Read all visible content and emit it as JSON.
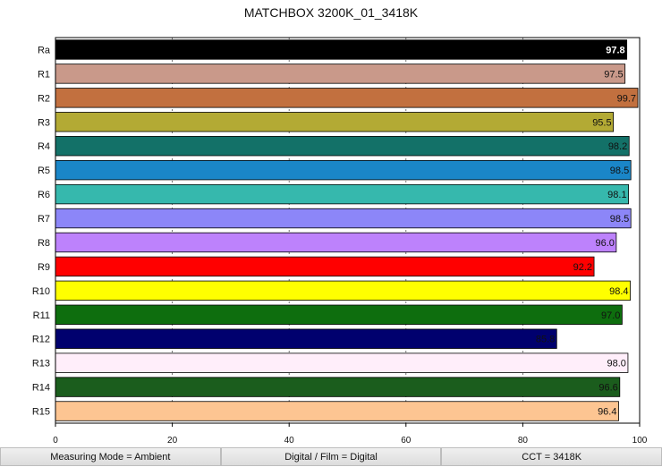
{
  "chart_data": {
    "type": "bar",
    "orientation": "horizontal",
    "title": "MATCHBOX 3200K_01_3418K",
    "categories": [
      "Ra",
      "R1",
      "R2",
      "R3",
      "R4",
      "R5",
      "R6",
      "R7",
      "R8",
      "R9",
      "R10",
      "R11",
      "R12",
      "R13",
      "R14",
      "R15"
    ],
    "values": [
      97.8,
      97.5,
      99.7,
      95.5,
      98.2,
      98.5,
      98.1,
      98.5,
      96.0,
      92.2,
      98.4,
      97.0,
      85.8,
      98.0,
      96.6,
      96.4
    ],
    "value_labels": [
      "97.8",
      "97.5",
      "99.7",
      "95.5",
      "98.2",
      "98.5",
      "98.1",
      "98.5",
      "96.0",
      "92.2",
      "98.4",
      "97.0",
      "85.8",
      "98.0",
      "96.6",
      "96.4"
    ],
    "colors": [
      "#000000",
      "#c9998a",
      "#c2703f",
      "#b3aa34",
      "#137168",
      "#1a86c8",
      "#36b8ad",
      "#8c86f8",
      "#bd82fc",
      "#ff0000",
      "#ffff00",
      "#0e6e0e",
      "#00006e",
      "#ffeefa",
      "#1b5d1d",
      "#fdc592"
    ],
    "label_colors": [
      "#ffffff",
      "#111111",
      "#111111",
      "#111111",
      "#111111",
      "#111111",
      "#111111",
      "#111111",
      "#111111",
      "#111111",
      "#111111",
      "#111111",
      "#111111",
      "#111111",
      "#111111",
      "#111111"
    ],
    "xlim": [
      0,
      100
    ],
    "xticks": [
      0,
      20,
      40,
      60,
      80,
      100
    ],
    "xtick_labels": [
      "0",
      "20",
      "40",
      "60",
      "80",
      "100"
    ],
    "grid": "vertical dashed",
    "legend": "none"
  },
  "footer": {
    "measuring_mode": "Measuring Mode = Ambient",
    "digital_film": "Digital / Film = Digital",
    "cct": "CCT = 3418K"
  }
}
